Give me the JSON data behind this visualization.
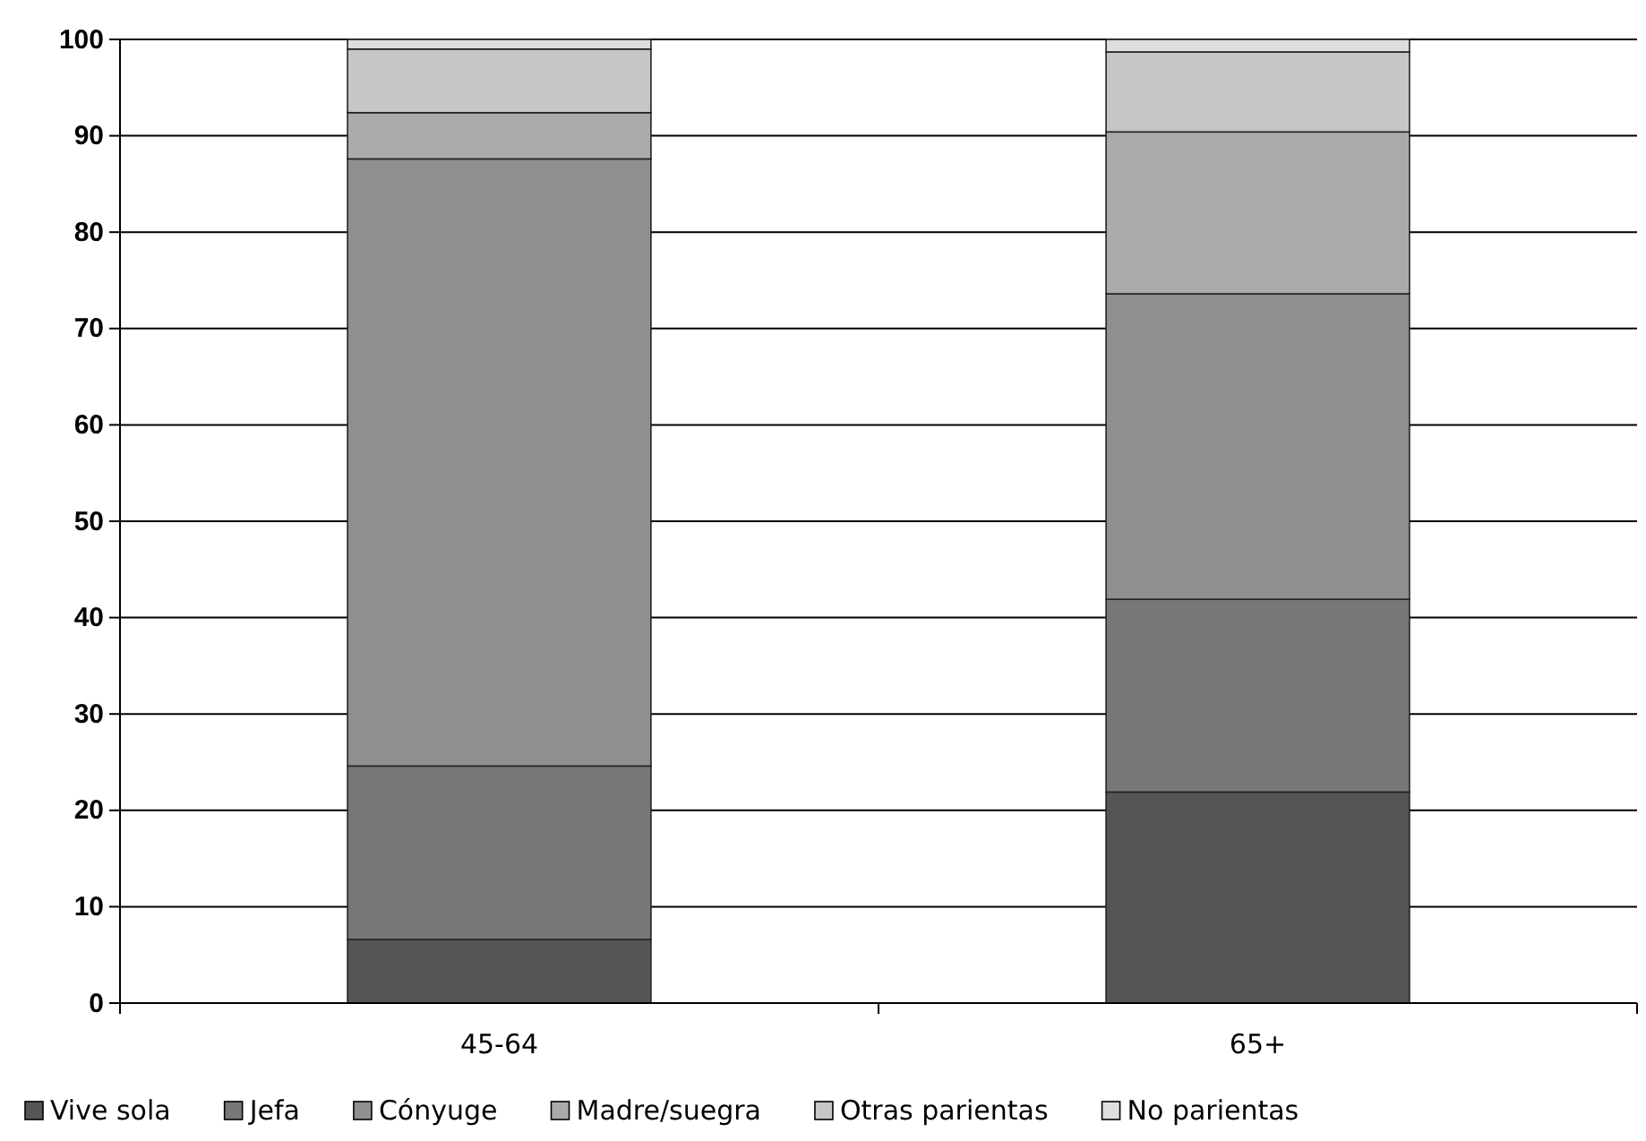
{
  "chart_data": {
    "type": "bar",
    "stacked": true,
    "categories": [
      "45-64",
      "65+"
    ],
    "series": [
      {
        "name": "Vive sola",
        "color": "#555555",
        "values": [
          6.6,
          21.9
        ]
      },
      {
        "name": "Jefa",
        "color": "#777777",
        "values": [
          18.0,
          20.0
        ]
      },
      {
        "name": "Cónyuge",
        "color": "#8f8f8f",
        "values": [
          63.0,
          31.7
        ]
      },
      {
        "name": "Madre/suegra",
        "color": "#ababab",
        "values": [
          4.8,
          16.8
        ]
      },
      {
        "name": "Otras parientas",
        "color": "#c6c6c6",
        "values": [
          6.6,
          8.3
        ]
      },
      {
        "name": "No parientas",
        "color": "#dedede",
        "values": [
          1.0,
          1.3
        ]
      }
    ],
    "ylim": [
      0,
      100
    ],
    "yticks": [
      0,
      10,
      20,
      30,
      40,
      50,
      60,
      70,
      80,
      90,
      100
    ],
    "grid": "y",
    "legend": "bottom"
  }
}
